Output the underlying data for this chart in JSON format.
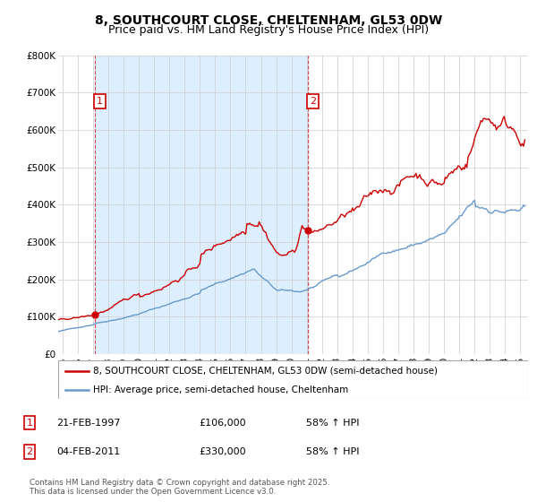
{
  "title": "8, SOUTHCOURT CLOSE, CHELTENHAM, GL53 0DW",
  "subtitle": "Price paid vs. HM Land Registry's House Price Index (HPI)",
  "ylim": [
    0,
    800000
  ],
  "xlim_start": 1994.7,
  "xlim_end": 2025.5,
  "yticks": [
    0,
    100000,
    200000,
    300000,
    400000,
    500000,
    600000,
    700000,
    800000
  ],
  "ytick_labels": [
    "£0",
    "£100K",
    "£200K",
    "£300K",
    "£400K",
    "£500K",
    "£600K",
    "£700K",
    "£800K"
  ],
  "xticks": [
    1995,
    1996,
    1997,
    1998,
    1999,
    2000,
    2001,
    2002,
    2003,
    2004,
    2005,
    2006,
    2007,
    2008,
    2009,
    2010,
    2011,
    2012,
    2013,
    2014,
    2015,
    2016,
    2017,
    2018,
    2019,
    2020,
    2021,
    2022,
    2023,
    2024,
    2025
  ],
  "red_line_color": "#cc0000",
  "blue_line_color": "#6699cc",
  "shade_color": "#ddeeff",
  "marker1_x": 1997.13,
  "marker1_y": 106000,
  "marker1_label": "1",
  "marker2_x": 2011.09,
  "marker2_y": 330000,
  "marker2_label": "2",
  "legend_red_label": "8, SOUTHCOURT CLOSE, CHELTENHAM, GL53 0DW (semi-detached house)",
  "legend_blue_label": "HPI: Average price, semi-detached house, Cheltenham",
  "transaction1_num": "1",
  "transaction1_date": "21-FEB-1997",
  "transaction1_price": "£106,000",
  "transaction1_hpi": "58% ↑ HPI",
  "transaction2_num": "2",
  "transaction2_date": "04-FEB-2011",
  "transaction2_price": "£330,000",
  "transaction2_hpi": "58% ↑ HPI",
  "footnote": "Contains HM Land Registry data © Crown copyright and database right 2025.\nThis data is licensed under the Open Government Licence v3.0.",
  "bg_color": "#ffffff",
  "grid_color": "#cccccc",
  "title_fontsize": 10,
  "subtitle_fontsize": 9,
  "tick_fontsize": 7.5
}
